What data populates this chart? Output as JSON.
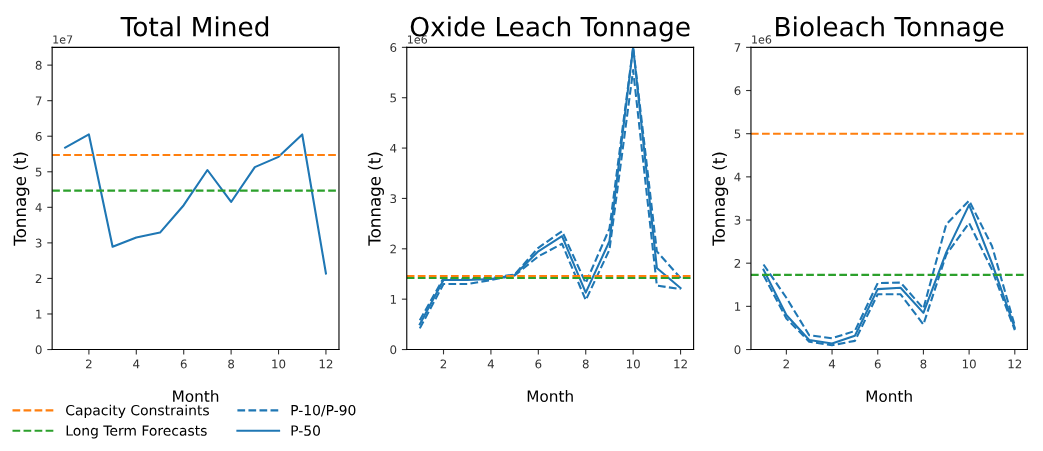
{
  "chart_data": [
    {
      "type": "line",
      "title": "Total Mined",
      "xlabel": "Month",
      "ylabel": "Tonnage (t)",
      "annotations": [
        "1e7"
      ],
      "legend": "bottom",
      "x": [
        1,
        2,
        3,
        4,
        5,
        6,
        7,
        8,
        9,
        10,
        11,
        12
      ],
      "xlim": [
        0.45,
        12.55
      ],
      "xticks": [
        2,
        4,
        6,
        8,
        10,
        12
      ],
      "ylim": [
        0,
        8.5
      ],
      "yticks": [
        0,
        1,
        2,
        3,
        4,
        5,
        6,
        7,
        8
      ],
      "series": [
        {
          "color": "#1f77b4",
          "line_style": "solid",
          "values": [
            5.68,
            6.05,
            2.89,
            3.15,
            3.29,
            4.06,
            5.05,
            4.15,
            5.13,
            5.42,
            6.05,
            2.14
          ]
        }
      ],
      "ref_lines": [
        {
          "axis": "y",
          "value": 5.47,
          "label": "Capacity Constraints",
          "color": "#ff7f0e",
          "line_style": "dashed"
        },
        {
          "axis": "y",
          "value": 4.47,
          "label": "Long Term Forecasts",
          "color": "#2ca02c",
          "line_style": "dashed"
        }
      ]
    },
    {
      "type": "line",
      "title": "Oxide Leach Tonnage",
      "xlabel": "Month",
      "ylabel": "Tonnage (t)",
      "annotations": [
        "1e6"
      ],
      "legend": "bottom",
      "x": [
        1,
        2,
        3,
        4,
        5,
        6,
        7,
        8,
        9,
        10,
        11,
        12
      ],
      "xlim": [
        0.45,
        12.55
      ],
      "xticks": [
        2,
        4,
        6,
        8,
        10,
        12
      ],
      "ylim": [
        0,
        6
      ],
      "yticks": [
        0,
        1,
        2,
        3,
        4,
        5,
        6
      ],
      "series": [
        {
          "name": "P-10/P-90",
          "color": "#1f77b4",
          "line_style": "dashed",
          "values": [
            0.42,
            1.3,
            1.3,
            1.38,
            1.47,
            1.85,
            2.1,
            0.98,
            1.98,
            5.55,
            1.27,
            1.2
          ]
        },
        {
          "color": "#1f77b4",
          "line_style": "dashed",
          "values": [
            0.58,
            1.42,
            1.4,
            1.42,
            1.49,
            2.02,
            2.35,
            1.32,
            2.4,
            6.0,
            1.95,
            1.42
          ]
        },
        {
          "name": "P-50",
          "color": "#1f77b4",
          "line_style": "solid",
          "values": [
            0.5,
            1.38,
            1.38,
            1.4,
            1.48,
            1.95,
            2.25,
            1.13,
            2.15,
            6.0,
            1.62,
            1.22
          ]
        }
      ],
      "ref_lines": [
        {
          "axis": "y",
          "value": 1.46,
          "color": "#ff7f0e",
          "line_style": "dashed"
        },
        {
          "axis": "y",
          "value": 1.42,
          "color": "#2ca02c",
          "line_style": "dashed"
        }
      ]
    },
    {
      "type": "line",
      "title": "Bioleach Tonnage",
      "xlabel": "Month",
      "ylabel": "Tonnage (t)",
      "annotations": [
        "1e6"
      ],
      "x": [
        1,
        2,
        3,
        4,
        5,
        6,
        7,
        8,
        9,
        10,
        11,
        12
      ],
      "xlim": [
        0.45,
        12.55
      ],
      "xticks": [
        2,
        4,
        6,
        8,
        10,
        12
      ],
      "ylim": [
        0,
        7
      ],
      "yticks": [
        0,
        1,
        2,
        3,
        4,
        5,
        6,
        7
      ],
      "series": [
        {
          "color": "#1f77b4",
          "line_style": "dashed",
          "values": [
            1.72,
            0.72,
            0.18,
            0.1,
            0.2,
            1.28,
            1.28,
            0.58,
            2.2,
            2.93,
            1.85,
            0.45
          ]
        },
        {
          "color": "#1f77b4",
          "line_style": "dashed",
          "values": [
            1.97,
            1.2,
            0.33,
            0.26,
            0.43,
            1.54,
            1.55,
            0.95,
            2.9,
            3.45,
            2.4,
            0.55
          ]
        },
        {
          "color": "#1f77b4",
          "line_style": "solid",
          "values": [
            1.85,
            0.8,
            0.22,
            0.14,
            0.32,
            1.4,
            1.43,
            0.85,
            2.25,
            3.35,
            2.0,
            0.5
          ]
        }
      ],
      "ref_lines": [
        {
          "axis": "y",
          "value": 5.0,
          "color": "#ff7f0e",
          "line_style": "dashed"
        },
        {
          "axis": "y",
          "value": 1.73,
          "color": "#2ca02c",
          "line_style": "dashed"
        }
      ]
    }
  ]
}
